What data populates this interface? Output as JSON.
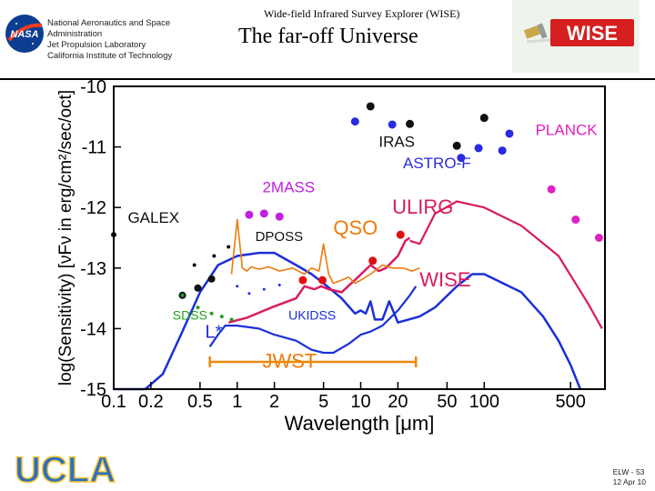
{
  "header": {
    "org_lines": [
      "National Aeronautics and Space",
      "Administration",
      "Jet Propulsion Laboratory",
      "California Institute of Technology"
    ],
    "mission": "Wide-field Infrared Survey Explorer (WISE)",
    "title": "The far-off Universe",
    "nasa_logo_text": "NASA",
    "wise_logo_text": "WISE"
  },
  "footer": {
    "logo_text": "UCLA",
    "code": "ELW - 53",
    "date": "12 Apr 10"
  },
  "chart_data": {
    "type": "line",
    "xlabel": "Wavelength  [μm]",
    "ylabel": "log(Sensitivity)  [νFν in erg/cm²/sec/oct]",
    "x_scale": "log",
    "xlim": [
      0.1,
      950
    ],
    "ylim": [
      -15,
      -10
    ],
    "x_ticks": [
      0.1,
      0.2,
      0.5,
      1,
      2,
      5,
      10,
      20,
      50,
      100,
      500
    ],
    "x_tick_labels": [
      "0.1",
      "0.2",
      "0.5",
      "1",
      "2",
      "5",
      "10",
      "20",
      "50",
      "100",
      "500"
    ],
    "y_ticks": [
      -15,
      -14,
      -13,
      -12,
      -11,
      -10
    ],
    "y_tick_labels": [
      "-15",
      "-14",
      "-13",
      "-12",
      "-11",
      "-10"
    ],
    "grid": false,
    "colors": {
      "wise": "#d81b60",
      "jwst_blue": "#1b2fd9",
      "qso": "#ee7a0b",
      "sdss": "#1fa01f",
      "ulirg": "#d81b60",
      "twomass": "#c020e0",
      "planck": "#e020c0",
      "black": "#111111",
      "red": "#e01010",
      "jwst_bar": "#e8890c",
      "iras": "#2a2ae0"
    },
    "series": [
      {
        "name": "WISE",
        "label_pos": [
          30,
          -13.3
        ],
        "x": [
          0.85,
          1.2,
          1.9,
          3,
          3.5,
          4.2,
          4.8,
          5.5,
          7,
          9.5,
          12,
          14,
          16,
          20,
          23,
          25
        ],
        "y": [
          -13.9,
          -13.82,
          -13.65,
          -13.5,
          -13.3,
          -13.35,
          -13.3,
          -13.35,
          -13.4,
          -13.15,
          -12.95,
          -13.05,
          -13.0,
          -12.8,
          -12.55,
          -12.5
        ]
      },
      {
        "name": "JWST",
        "label_pos": [
          1.6,
          -14.65
        ],
        "x": [
          0.6,
          0.7,
          0.8,
          1,
          1.5,
          2,
          3,
          4,
          5,
          6,
          8,
          10,
          12,
          15,
          20,
          25,
          28
        ],
        "y": [
          -14.3,
          -14.1,
          -13.95,
          -13.95,
          -14.0,
          -14.1,
          -14.2,
          -14.35,
          -14.4,
          -14.4,
          -14.25,
          -14.1,
          -14.05,
          -13.95,
          -13.7,
          -13.45,
          -13.3
        ]
      },
      {
        "name": "QSO",
        "label_pos": [
          6,
          -12.45
        ],
        "x": [
          0.9,
          1.0,
          1.1,
          1.2,
          1.3,
          1.5,
          1.8,
          2.2,
          2.8,
          3.5,
          4,
          4.6,
          5,
          5.5,
          6,
          7,
          8,
          9,
          10,
          12,
          15,
          18,
          22,
          26,
          30
        ],
        "y": [
          -13.1,
          -12.2,
          -13.0,
          -13.05,
          -12.98,
          -13.02,
          -12.98,
          -13.05,
          -13.0,
          -13.1,
          -13.0,
          -13.05,
          -12.6,
          -13.1,
          -13.25,
          -13.2,
          -13.15,
          -13.25,
          -13.2,
          -13.1,
          -12.95,
          -13.0,
          -13.0,
          -13.05,
          -13.0
        ]
      },
      {
        "name": "ULIRG",
        "label_pos": [
          18,
          -12.1
        ],
        "x": [
          25,
          30,
          40,
          60,
          100,
          200,
          400,
          700,
          900
        ],
        "y": [
          -12.55,
          -12.6,
          -12.1,
          -11.9,
          -12.0,
          -12.3,
          -12.8,
          -13.6,
          -14.0
        ]
      },
      {
        "name": "blue-sensitivity",
        "x": [
          0.1,
          0.18,
          0.25,
          0.35,
          0.5,
          0.7,
          1,
          1.5,
          2,
          3,
          4,
          5,
          7,
          9,
          10,
          11,
          12,
          13,
          15,
          17,
          20,
          30,
          40,
          60,
          80,
          100,
          200,
          300,
          400,
          500,
          600
        ],
        "y": [
          -15,
          -15,
          -14.75,
          -14.1,
          -13.4,
          -12.95,
          -12.8,
          -12.75,
          -12.75,
          -12.95,
          -13.1,
          -13.25,
          -13.5,
          -13.75,
          -13.7,
          -13.75,
          -13.55,
          -13.85,
          -13.85,
          -13.55,
          -13.9,
          -13.8,
          -13.65,
          -13.3,
          -13.1,
          -13.1,
          -13.4,
          -13.8,
          -14.2,
          -14.6,
          -15.0
        ]
      }
    ],
    "point_groups": [
      {
        "name": "GALEX",
        "label_pos": [
          0.13,
          -12.25
        ],
        "x": [
          0.1
        ],
        "y": [
          -12.45
        ]
      },
      {
        "name": "black-optical",
        "x": [
          0.36,
          0.48,
          0.62
        ],
        "y": [
          -13.45,
          -13.33,
          -13.18
        ]
      },
      {
        "name": "SDSS",
        "label_pos": [
          0.3,
          -13.85
        ],
        "x": [
          0.36,
          0.48,
          0.62,
          0.75,
          0.9
        ],
        "y": [
          -13.45,
          -13.65,
          -13.75,
          -13.8,
          -13.85
        ]
      },
      {
        "name": "DPOSS",
        "label_pos": [
          1.4,
          -12.55
        ],
        "x": [
          0.45,
          0.65,
          0.85
        ],
        "y": [
          -12.95,
          -12.8,
          -12.65
        ]
      },
      {
        "name": "2MASS",
        "label_pos": [
          1.6,
          -11.75
        ],
        "x": [
          1.25,
          1.65,
          2.2
        ],
        "y": [
          -12.12,
          -12.1,
          -12.15
        ]
      },
      {
        "name": "UKIDSS",
        "label_pos": [
          2.6,
          -13.85
        ],
        "x": [
          1.0,
          1.25,
          1.65,
          2.2
        ],
        "y": [
          -13.3,
          -13.42,
          -13.35,
          -13.28
        ]
      },
      {
        "name": "IRAS",
        "label_pos": [
          14,
          -11.0
        ],
        "x": [
          12,
          25,
          60,
          100
        ],
        "y": [
          -10.33,
          -10.62,
          -10.98,
          -10.52
        ]
      },
      {
        "name": "ASTRO-F",
        "label_pos": [
          22,
          -11.35
        ],
        "x": [
          9,
          18,
          65,
          90,
          140,
          160
        ],
        "y": [
          -10.58,
          -10.63,
          -11.18,
          -11.02,
          -11.06,
          -10.78
        ]
      },
      {
        "name": "PLANCK",
        "label_pos": [
          260,
          -10.8
        ],
        "x": [
          350,
          550,
          850
        ],
        "y": [
          -11.7,
          -12.2,
          -12.5
        ]
      },
      {
        "name": "red-points",
        "x": [
          3.4,
          4.9,
          12.5,
          21
        ],
        "y": [
          -13.2,
          -13.2,
          -12.88,
          -12.45
        ]
      }
    ],
    "annotations": [
      {
        "text": "L*",
        "x": 0.55,
        "y": -14.15
      }
    ],
    "range_bar": {
      "name": "JWST",
      "x": [
        0.6,
        28
      ],
      "y": -14.55
    }
  }
}
